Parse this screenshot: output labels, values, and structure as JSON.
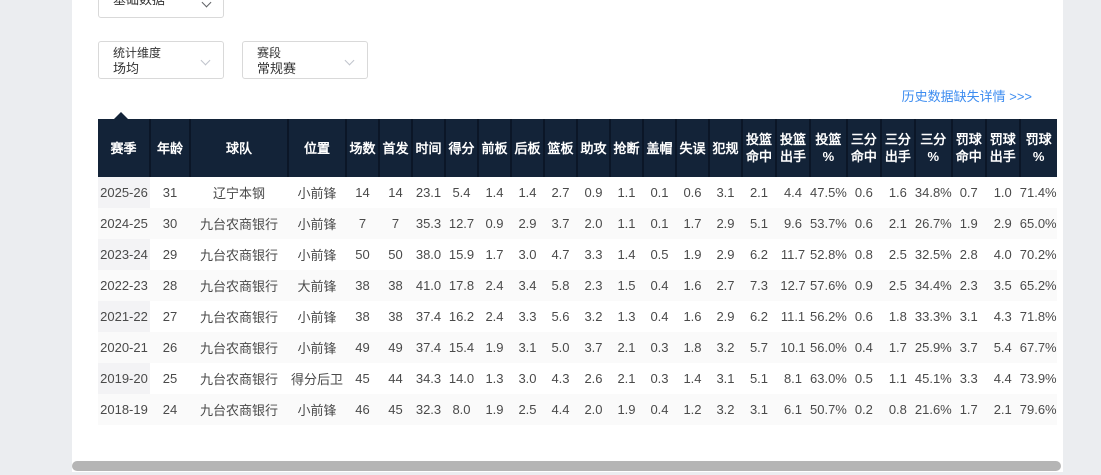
{
  "filters": {
    "data_type": {
      "value": "基础数据"
    },
    "stat_dimension": {
      "label": "统计维度",
      "value": "场均"
    },
    "stage": {
      "label": "赛段",
      "value": "常规赛"
    }
  },
  "history_link": "历史数据缺失详情 >>>",
  "colors": {
    "header_bg": "#132338",
    "link_blue": "#3c8cf0",
    "page_bg": "#ebedf0",
    "zebra_row": "#fafafa",
    "fixed_col": "#f3f3f5"
  },
  "table": {
    "columns": [
      "赛季",
      "年龄",
      "球队",
      "位置",
      "场数",
      "首发",
      "时间",
      "得分",
      "前板",
      "后板",
      "篮板",
      "助攻",
      "抢断",
      "盖帽",
      "失误",
      "犯规",
      "投篮\n命中",
      "投篮\n出手",
      "投篮\n%",
      "三分\n命中",
      "三分\n出手",
      "三分\n%",
      "罚球\n命中",
      "罚球\n出手",
      "罚球\n%"
    ],
    "rows": [
      [
        "2025-26",
        "31",
        "辽宁本钢",
        "小前锋",
        "14",
        "14",
        "23.1",
        "5.4",
        "1.4",
        "1.4",
        "2.7",
        "0.9",
        "1.1",
        "0.1",
        "0.6",
        "3.1",
        "2.1",
        "4.4",
        "47.5%",
        "0.6",
        "1.6",
        "34.8%",
        "0.7",
        "1.0",
        "71.4%"
      ],
      [
        "2024-25",
        "30",
        "九台农商银行",
        "小前锋",
        "7",
        "7",
        "35.3",
        "12.7",
        "0.9",
        "2.9",
        "3.7",
        "2.0",
        "1.1",
        "0.1",
        "1.7",
        "2.9",
        "5.1",
        "9.6",
        "53.7%",
        "0.6",
        "2.1",
        "26.7%",
        "1.9",
        "2.9",
        "65.0%"
      ],
      [
        "2023-24",
        "29",
        "九台农商银行",
        "小前锋",
        "50",
        "50",
        "38.0",
        "15.9",
        "1.7",
        "3.0",
        "4.7",
        "3.3",
        "1.4",
        "0.5",
        "1.9",
        "2.9",
        "6.2",
        "11.7",
        "52.8%",
        "0.8",
        "2.5",
        "32.5%",
        "2.8",
        "4.0",
        "70.2%"
      ],
      [
        "2022-23",
        "28",
        "九台农商银行",
        "大前锋",
        "38",
        "38",
        "41.0",
        "17.8",
        "2.4",
        "3.4",
        "5.8",
        "2.3",
        "1.5",
        "0.4",
        "1.6",
        "2.7",
        "7.3",
        "12.7",
        "57.6%",
        "0.9",
        "2.5",
        "34.4%",
        "2.3",
        "3.5",
        "65.2%"
      ],
      [
        "2021-22",
        "27",
        "九台农商银行",
        "小前锋",
        "38",
        "38",
        "37.4",
        "16.2",
        "2.4",
        "3.3",
        "5.6",
        "3.2",
        "1.3",
        "0.4",
        "1.6",
        "2.9",
        "6.2",
        "11.1",
        "56.2%",
        "0.6",
        "1.8",
        "33.3%",
        "3.1",
        "4.3",
        "71.8%"
      ],
      [
        "2020-21",
        "26",
        "九台农商银行",
        "小前锋",
        "49",
        "49",
        "37.4",
        "15.4",
        "1.9",
        "3.1",
        "5.0",
        "3.7",
        "2.1",
        "0.3",
        "1.8",
        "3.2",
        "5.7",
        "10.1",
        "56.0%",
        "0.4",
        "1.7",
        "25.9%",
        "3.7",
        "5.4",
        "67.7%"
      ],
      [
        "2019-20",
        "25",
        "九台农商银行",
        "得分后卫",
        "45",
        "44",
        "34.3",
        "14.0",
        "1.3",
        "3.0",
        "4.3",
        "2.6",
        "2.1",
        "0.3",
        "1.4",
        "3.1",
        "5.1",
        "8.1",
        "63.0%",
        "0.5",
        "1.1",
        "45.1%",
        "3.3",
        "4.4",
        "73.9%"
      ],
      [
        "2018-19",
        "24",
        "九台农商银行",
        "小前锋",
        "46",
        "45",
        "32.3",
        "8.0",
        "1.9",
        "2.5",
        "4.4",
        "2.0",
        "1.9",
        "0.4",
        "1.2",
        "3.2",
        "3.1",
        "6.1",
        "50.7%",
        "0.2",
        "0.8",
        "21.6%",
        "1.7",
        "2.1",
        "79.6%"
      ]
    ]
  }
}
